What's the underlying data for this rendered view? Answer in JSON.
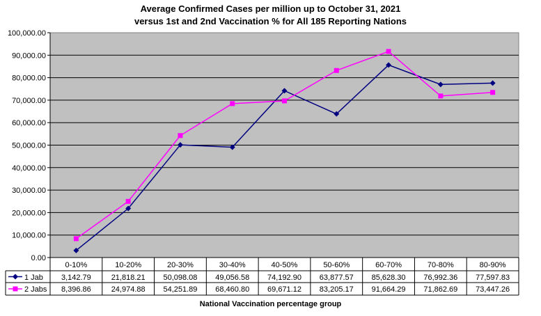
{
  "chart_data": {
    "type": "line",
    "title": "Average Confirmed Cases per million up to October 31, 2021",
    "subtitle": "versus 1st and 2nd Vaccination % for All 185 Reporting Nations",
    "xlabel": "National Vaccination percentage group",
    "ylabel": "",
    "ylim": [
      0,
      100000
    ],
    "yticks": [
      "0.00",
      "10,000.00",
      "20,000.00",
      "30,000.00",
      "40,000.00",
      "50,000.00",
      "60,000.00",
      "70,000.00",
      "80,000.00",
      "90,000.00",
      "100,000.00"
    ],
    "grid": true,
    "legend": "data-table-left",
    "categories": [
      "0-10%",
      "10-20%",
      "20-30%",
      "30-40%",
      "40-50%",
      "50-60%",
      "60-70%",
      "70-80%",
      "80-90%"
    ],
    "series": [
      {
        "name": "1 Jab",
        "color": "#000080",
        "marker": "diamond",
        "values": [
          3142.79,
          21818.21,
          50098.08,
          49056.58,
          74192.9,
          63877.57,
          85628.3,
          76992.36,
          77597.83
        ],
        "labels": [
          "3,142.79",
          "21,818.21",
          "50,098.08",
          "49,056.58",
          "74,192.90",
          "63,877.57",
          "85,628.30",
          "76,992.36",
          "77,597.83"
        ]
      },
      {
        "name": "2 Jabs",
        "color": "#ff00ff",
        "marker": "square",
        "values": [
          8396.86,
          24974.88,
          54251.89,
          68460.8,
          69671.12,
          83205.17,
          91664.29,
          71862.69,
          73447.26
        ],
        "labels": [
          "8,396.86",
          "24,974.88",
          "54,251.89",
          "68,460.80",
          "69,671.12",
          "83,205.17",
          "91,664.29",
          "71,862.69",
          "73,447.26"
        ]
      }
    ],
    "plot_bg": "#c0c0c0"
  }
}
